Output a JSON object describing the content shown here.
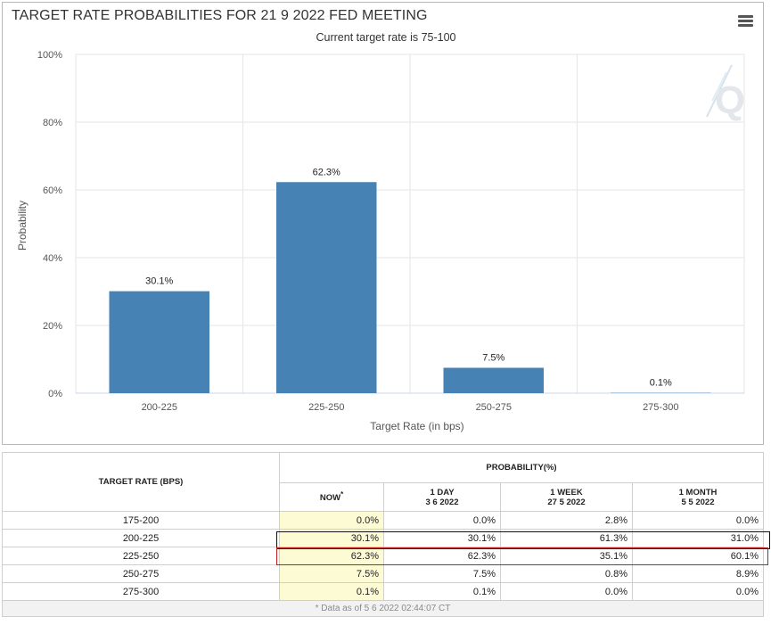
{
  "chart": {
    "title": "TARGET RATE PROBABILITIES FOR 21 9 2022 FED MEETING",
    "subtitle": "Current target rate is 75-100",
    "menu_icon": "hamburger-menu-icon",
    "watermark": "Q"
  },
  "chart_data": {
    "type": "bar",
    "categories": [
      "200-225",
      "225-250",
      "250-275",
      "275-300"
    ],
    "values": [
      30.1,
      62.3,
      7.5,
      0.1
    ],
    "data_labels": [
      "30.1%",
      "62.3%",
      "7.5%",
      "0.1%"
    ],
    "title": "TARGET RATE PROBABILITIES FOR 21 9 2022 FED MEETING",
    "subtitle": "Current target rate is 75-100",
    "xlabel": "Target Rate (in bps)",
    "ylabel": "Probability",
    "ylim": [
      0,
      100
    ],
    "yticks": [
      "0%",
      "20%",
      "40%",
      "60%",
      "80%",
      "100%"
    ],
    "yticks_values": [
      0,
      20,
      40,
      60,
      80,
      100
    ],
    "bar_color": "#4682b4",
    "grid": true
  },
  "table": {
    "col_rate": "TARGET RATE (BPS)",
    "col_prob": "PROBABILITY(%)",
    "col_now": "NOW",
    "col_now_mark": "*",
    "col_1day": "1 DAY",
    "col_1day_date": "3 6 2022",
    "col_1week": "1 WEEK",
    "col_1week_date": "27 5 2022",
    "col_1month": "1 MONTH",
    "col_1month_date": "5 5 2022",
    "rows": [
      {
        "rate": "175-200",
        "now": "0.0%",
        "day": "0.0%",
        "week": "2.8%",
        "month": "0.0%"
      },
      {
        "rate": "200-225",
        "now": "30.1%",
        "day": "30.1%",
        "week": "61.3%",
        "month": "31.0%"
      },
      {
        "rate": "225-250",
        "now": "62.3%",
        "day": "62.3%",
        "week": "35.1%",
        "month": "60.1%"
      },
      {
        "rate": "250-275",
        "now": "7.5%",
        "day": "7.5%",
        "week": "0.8%",
        "month": "8.9%"
      },
      {
        "rate": "275-300",
        "now": "0.1%",
        "day": "0.1%",
        "week": "0.0%",
        "month": "0.0%"
      }
    ],
    "footnote": "* Data as of 5 6 2022 02:44:07 CT"
  }
}
